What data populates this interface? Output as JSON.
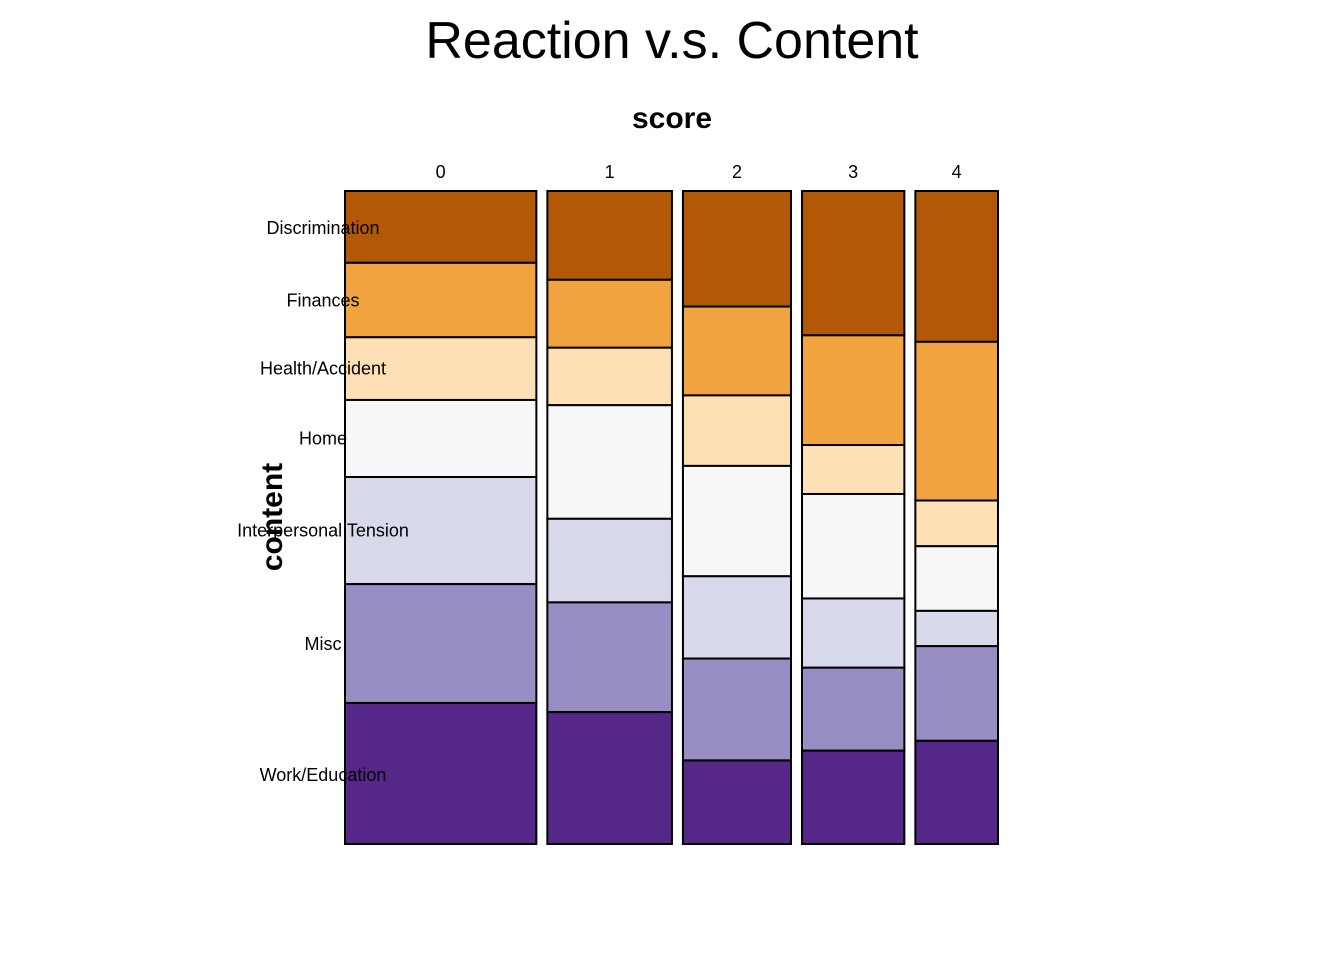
{
  "chart_data": {
    "type": "mosaic",
    "title": "Reaction v.s. Content",
    "xlabel": "score",
    "ylabel": "content",
    "x_categories": [
      "0",
      "1",
      "2",
      "3",
      "4"
    ],
    "x_proportions": [
      0.301,
      0.196,
      0.17,
      0.161,
      0.13
    ],
    "y_categories": [
      "Discrimination",
      "Finances",
      "Health/Accident",
      "Home",
      "Interpersonal Tension",
      "Misc",
      "Work/Education"
    ],
    "y_label_positions": [
      0.057,
      0.168,
      0.272,
      0.379,
      0.52,
      0.694,
      0.894
    ],
    "colors": [
      "#B35806",
      "#F1A340",
      "#FEE0B6",
      "#F7F7F7",
      "#D8DAEB",
      "#998EC3",
      "#542788"
    ],
    "column_proportions": [
      {
        "score": "0",
        "values": [
          0.11,
          0.114,
          0.096,
          0.118,
          0.164,
          0.182,
          0.216
        ]
      },
      {
        "score": "1",
        "values": [
          0.136,
          0.104,
          0.088,
          0.174,
          0.128,
          0.168,
          0.202
        ]
      },
      {
        "score": "2",
        "values": [
          0.177,
          0.136,
          0.108,
          0.169,
          0.126,
          0.156,
          0.128
        ]
      },
      {
        "score": "3",
        "values": [
          0.221,
          0.168,
          0.075,
          0.16,
          0.106,
          0.127,
          0.143
        ]
      },
      {
        "score": "4",
        "values": [
          0.231,
          0.243,
          0.07,
          0.099,
          0.054,
          0.145,
          0.158
        ]
      }
    ],
    "grid": false,
    "legend": "none"
  }
}
